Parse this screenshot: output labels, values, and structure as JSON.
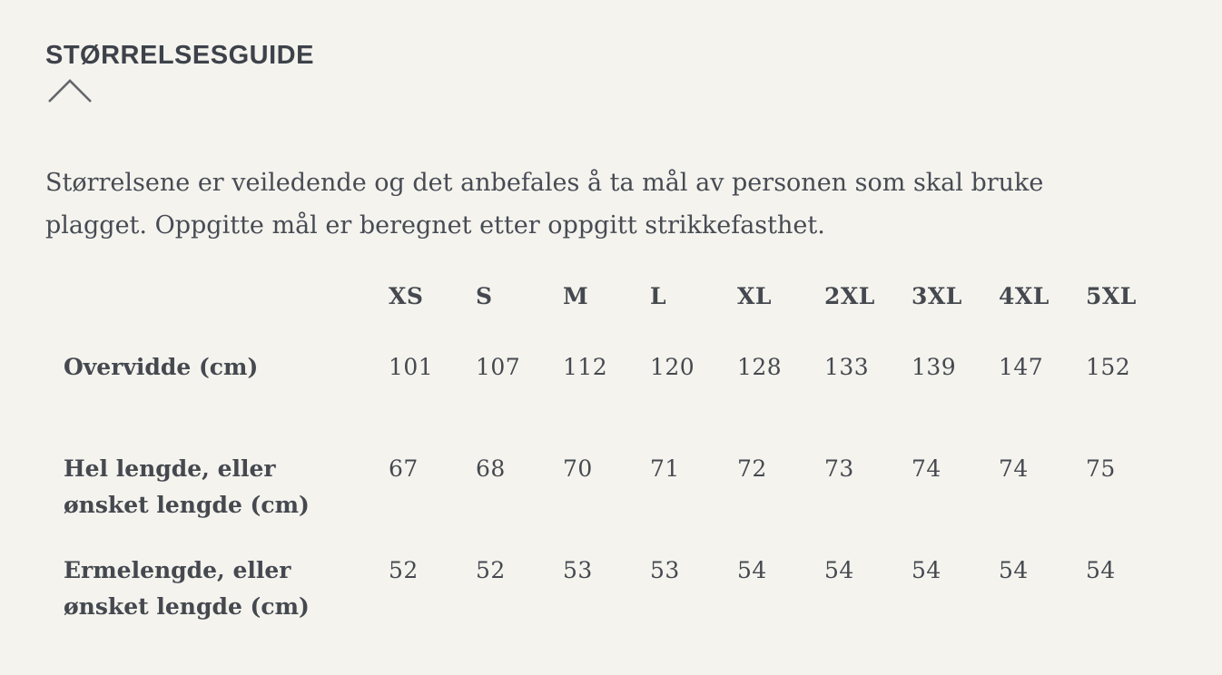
{
  "page": {
    "background_color": "#f4f3ee",
    "text_color": "#45494f",
    "title_color": "#3d424a"
  },
  "size_guide": {
    "title": "STØRRELSESGUIDE",
    "collapse_icon": "chevron-up-icon",
    "description": "Størrelsene er veiledende og det anbefales å ta mål av personen som skal bruke plagget. Oppgitte mål er beregnet etter oppgitt strikkefasthet.",
    "table": {
      "columns": [
        "XS",
        "S",
        "M",
        "L",
        "XL",
        "2XL",
        "3XL",
        "4XL",
        "5XL"
      ],
      "rows": [
        {
          "label": "Overvidde (cm)",
          "values": [
            "101",
            "107",
            "112",
            "120",
            "128",
            "133",
            "139",
            "147",
            "152"
          ]
        },
        {
          "label": "Hel lengde, eller ønsket lengde (cm)",
          "values": [
            "67",
            "68",
            "70",
            "71",
            "72",
            "73",
            "74",
            "74",
            "75"
          ]
        },
        {
          "label": "Ermelengde, eller ønsket lengde (cm)",
          "values": [
            "52",
            "52",
            "53",
            "53",
            "54",
            "54",
            "54",
            "54",
            "54"
          ]
        }
      ]
    }
  }
}
